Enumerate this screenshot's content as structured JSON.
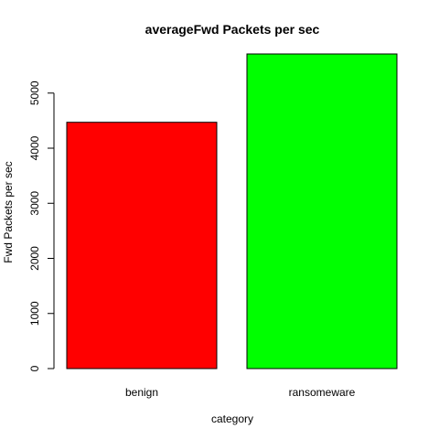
{
  "chart_data": {
    "type": "bar",
    "title": "averageFwd Packets per sec",
    "xlabel": "category",
    "ylabel": "Fwd Packets per sec",
    "categories": [
      "benign",
      "ransomeware"
    ],
    "values": [
      4470,
      5710
    ],
    "ylim": [
      0,
      5710
    ],
    "yticks": [
      0,
      1000,
      2000,
      3000,
      4000,
      5000
    ],
    "ytick_labels": [
      "0",
      "1000",
      "2000",
      "3000",
      "4000",
      "5000"
    ],
    "grid": false,
    "legend": "none",
    "colors": [
      "#ff0000",
      "#00ff00"
    ],
    "border_color": "#000000"
  }
}
